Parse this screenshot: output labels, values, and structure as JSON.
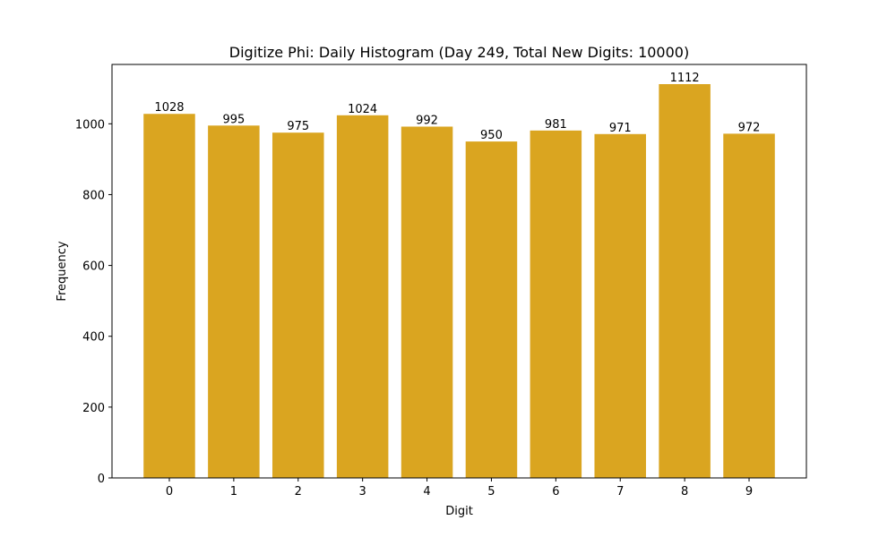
{
  "chart_data": {
    "type": "bar",
    "title": "Digitize Phi: Daily Histogram (Day 249, Total New Digits: 10000)",
    "xlabel": "Digit",
    "ylabel": "Frequency",
    "categories": [
      "0",
      "1",
      "2",
      "3",
      "4",
      "5",
      "6",
      "7",
      "8",
      "9"
    ],
    "values": [
      1028,
      995,
      975,
      1024,
      992,
      950,
      981,
      971,
      1112,
      972
    ],
    "data_labels": [
      "1028",
      "995",
      "975",
      "1024",
      "992",
      "950",
      "981",
      "971",
      "1112",
      "972"
    ],
    "ylim": [
      0,
      1167.6
    ],
    "xlim": [
      -0.89,
      9.89
    ],
    "yticks": [
      0,
      200,
      400,
      600,
      800,
      1000
    ],
    "ytick_labels": [
      "0",
      "200",
      "400",
      "600",
      "800",
      "1000"
    ],
    "bar_color": "#daa520",
    "grid": false,
    "legend": null
  }
}
